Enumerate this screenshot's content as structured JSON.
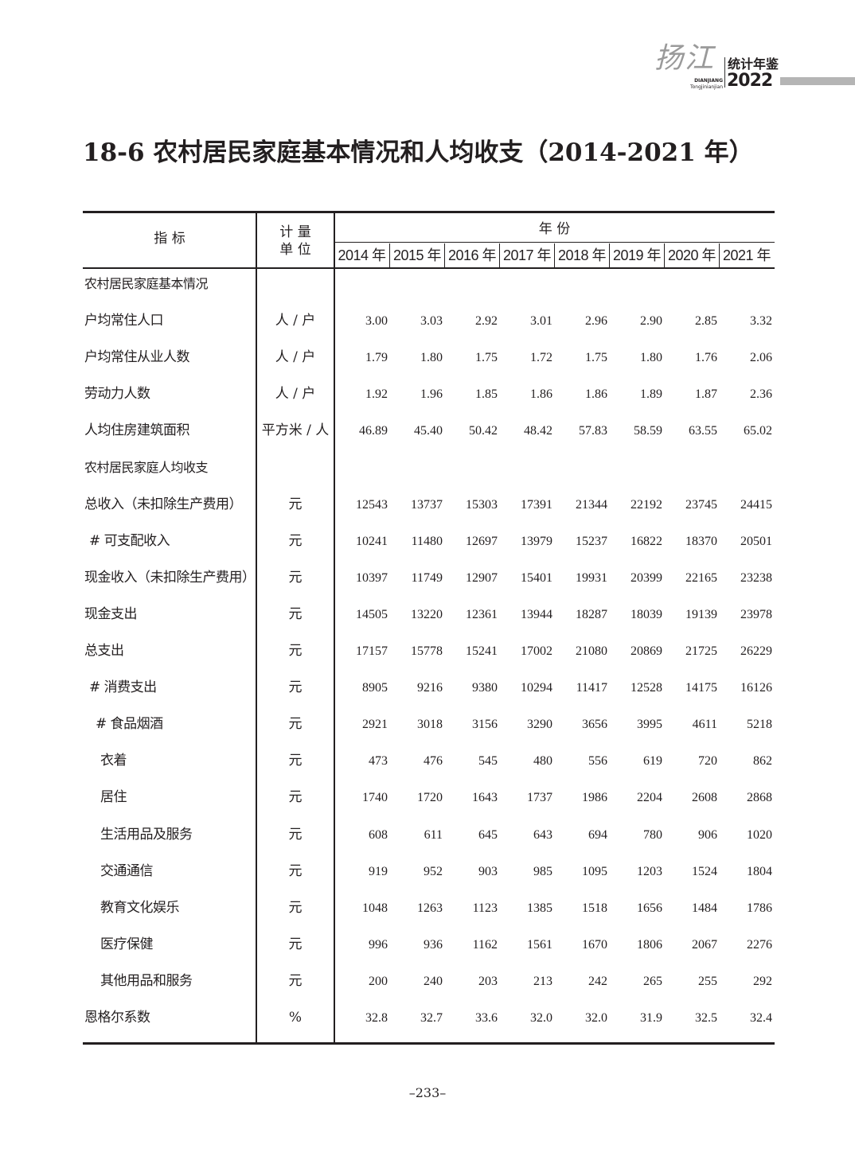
{
  "header": {
    "logo_script": "扬江",
    "logo_pinyin_1": "DIANJIANG",
    "logo_pinyin_2": "Tongjinianjian",
    "logo_title": "统计年鉴",
    "logo_year": "2022"
  },
  "title": "18-6 农村居民家庭基本情况和人均收支（2014-2021 年）",
  "table": {
    "col_indicator": "指  标",
    "col_unit_line1": "计  量",
    "col_unit_line2": "单  位",
    "col_years_group": "年  份",
    "years": [
      "2014 年",
      "2015 年",
      "2016 年",
      "2017 年",
      "2018 年",
      "2019 年",
      "2020 年",
      "2021 年"
    ],
    "rows": [
      {
        "label": "农村居民家庭基本情况",
        "section": true,
        "level": 0,
        "unit": "",
        "values": []
      },
      {
        "label": "户均常住人口",
        "level": 0,
        "unit": "人 / 户",
        "values": [
          "3.00",
          "3.03",
          "2.92",
          "3.01",
          "2.96",
          "2.90",
          "2.85",
          "3.32"
        ]
      },
      {
        "label": "户均常住从业人数",
        "level": 0,
        "unit": "人 / 户",
        "values": [
          "1.79",
          "1.80",
          "1.75",
          "1.72",
          "1.75",
          "1.80",
          "1.76",
          "2.06"
        ]
      },
      {
        "label": "劳动力人数",
        "level": 0,
        "unit": "人 / 户",
        "values": [
          "1.92",
          "1.96",
          "1.85",
          "1.86",
          "1.86",
          "1.89",
          "1.87",
          "2.36"
        ]
      },
      {
        "label": "人均住房建筑面积",
        "level": 0,
        "unit": "平方米 / 人",
        "values": [
          "46.89",
          "45.40",
          "50.42",
          "48.42",
          "57.83",
          "58.59",
          "63.55",
          "65.02"
        ]
      },
      {
        "label": "农村居民家庭人均收支",
        "section": true,
        "level": 0,
        "unit": "",
        "values": []
      },
      {
        "label": "总收入（未扣除生产费用）",
        "level": 0,
        "unit": "元",
        "values": [
          "12543",
          "13737",
          "15303",
          "17391",
          "21344",
          "22192",
          "23745",
          "24415"
        ]
      },
      {
        "label": "# 可支配收入",
        "level": 1,
        "unit": "元",
        "values": [
          "10241",
          "11480",
          "12697",
          "13979",
          "15237",
          "16822",
          "18370",
          "20501"
        ]
      },
      {
        "label": "现金收入（未扣除生产费用）",
        "level": 0,
        "unit": "元",
        "values": [
          "10397",
          "11749",
          "12907",
          "15401",
          "19931",
          "20399",
          "22165",
          "23238"
        ]
      },
      {
        "label": "现金支出",
        "level": 0,
        "unit": "元",
        "values": [
          "14505",
          "13220",
          "12361",
          "13944",
          "18287",
          "18039",
          "19139",
          "23978"
        ]
      },
      {
        "label": "总支出",
        "level": 0,
        "unit": "元",
        "values": [
          "17157",
          "15778",
          "15241",
          "17002",
          "21080",
          "20869",
          "21725",
          "26229"
        ]
      },
      {
        "label": "# 消费支出",
        "level": 1,
        "unit": "元",
        "values": [
          "8905",
          "9216",
          "9380",
          "10294",
          "11417",
          "12528",
          "14175",
          "16126"
        ]
      },
      {
        "label": "# 食品烟酒",
        "level": 2,
        "unit": "元",
        "values": [
          "2921",
          "3018",
          "3156",
          "3290",
          "3656",
          "3995",
          "4611",
          "5218"
        ]
      },
      {
        "label": "衣着",
        "level": 3,
        "unit": "元",
        "values": [
          "473",
          "476",
          "545",
          "480",
          "556",
          "619",
          "720",
          "862"
        ]
      },
      {
        "label": "居住",
        "level": 3,
        "unit": "元",
        "values": [
          "1740",
          "1720",
          "1643",
          "1737",
          "1986",
          "2204",
          "2608",
          "2868"
        ]
      },
      {
        "label": "生活用品及服务",
        "level": 3,
        "unit": "元",
        "values": [
          "608",
          "611",
          "645",
          "643",
          "694",
          "780",
          "906",
          "1020"
        ]
      },
      {
        "label": "交通通信",
        "level": 3,
        "unit": "元",
        "values": [
          "919",
          "952",
          "903",
          "985",
          "1095",
          "1203",
          "1524",
          "1804"
        ]
      },
      {
        "label": "教育文化娱乐",
        "level": 3,
        "unit": "元",
        "values": [
          "1048",
          "1263",
          "1123",
          "1385",
          "1518",
          "1656",
          "1484",
          "1786"
        ]
      },
      {
        "label": "医疗保健",
        "level": 3,
        "unit": "元",
        "values": [
          "996",
          "936",
          "1162",
          "1561",
          "1670",
          "1806",
          "2067",
          "2276"
        ]
      },
      {
        "label": "其他用品和服务",
        "level": 3,
        "unit": "元",
        "values": [
          "200",
          "240",
          "203",
          "213",
          "242",
          "265",
          "255",
          "292"
        ]
      },
      {
        "label": "恩格尔系数",
        "level": 0,
        "unit": "%",
        "values": [
          "32.8",
          "32.7",
          "33.6",
          "32.0",
          "32.0",
          "31.9",
          "32.5",
          "32.4"
        ]
      }
    ]
  },
  "page_number": "–233–"
}
